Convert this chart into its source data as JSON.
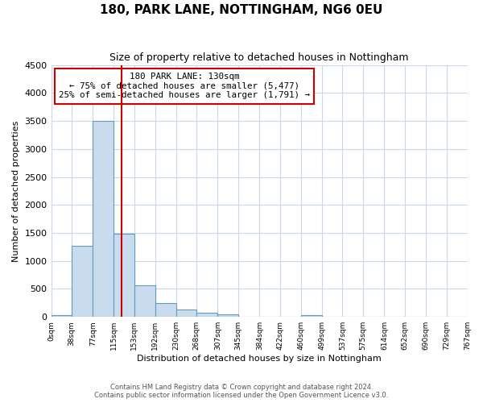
{
  "title": "180, PARK LANE, NOTTINGHAM, NG6 0EU",
  "subtitle": "Size of property relative to detached houses in Nottingham",
  "xlabel": "Distribution of detached houses by size in Nottingham",
  "ylabel": "Number of detached properties",
  "bar_color": "#c8dcee",
  "bar_edge_color": "#6699bb",
  "background_color": "#ffffff",
  "grid_color": "#c8d8e8",
  "bins": [
    0,
    38,
    77,
    115,
    153,
    192,
    230,
    268,
    307,
    345,
    384,
    422,
    460,
    499,
    537,
    575,
    614,
    652,
    690,
    729,
    767
  ],
  "counts": [
    30,
    1270,
    3500,
    1480,
    570,
    245,
    135,
    80,
    40,
    5,
    0,
    0,
    25,
    0,
    0,
    0,
    0,
    0,
    0,
    0
  ],
  "tick_labels": [
    "0sqm",
    "38sqm",
    "77sqm",
    "115sqm",
    "153sqm",
    "192sqm",
    "230sqm",
    "268sqm",
    "307sqm",
    "345sqm",
    "384sqm",
    "422sqm",
    "460sqm",
    "499sqm",
    "537sqm",
    "575sqm",
    "614sqm",
    "652sqm",
    "690sqm",
    "729sqm",
    "767sqm"
  ],
  "ylim": [
    0,
    4500
  ],
  "yticks": [
    0,
    500,
    1000,
    1500,
    2000,
    2500,
    3000,
    3500,
    4000,
    4500
  ],
  "vline_x": 130,
  "vline_color": "#cc0000",
  "annotation_title": "180 PARK LANE: 130sqm",
  "annotation_line1": "← 75% of detached houses are smaller (5,477)",
  "annotation_line2": "25% of semi-detached houses are larger (1,791) →",
  "annotation_box_color": "#ffffff",
  "annotation_box_edge": "#cc0000",
  "footer1": "Contains HM Land Registry data © Crown copyright and database right 2024.",
  "footer2": "Contains public sector information licensed under the Open Government Licence v3.0."
}
